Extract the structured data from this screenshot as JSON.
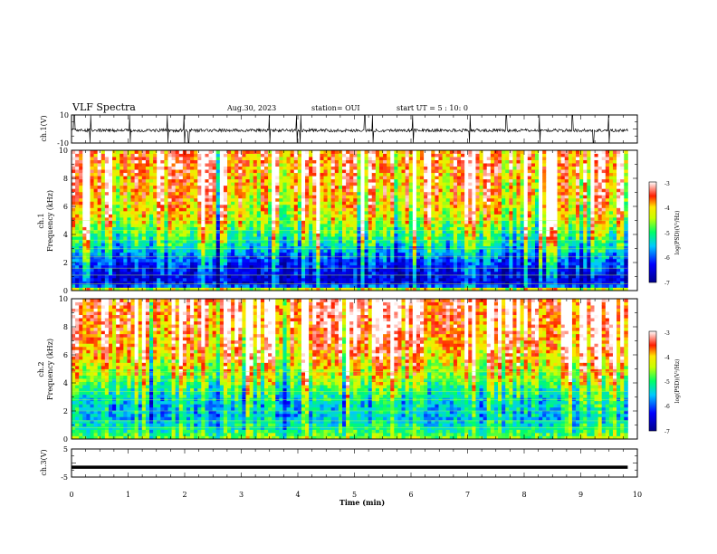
{
  "header": {
    "title": "VLF Spectra",
    "date": "Aug.30, 2023",
    "station": "station= OUI",
    "start": "start  UT  =   5  : 10: 0"
  },
  "chart_data": [
    {
      "type": "line",
      "ylabel": "ch.1(V)",
      "yticks": [
        "10",
        "-10"
      ],
      "ylim": [
        -10,
        10
      ],
      "xlim": [
        0,
        10
      ],
      "color": "#000000",
      "baseline": -1,
      "spike_times": [
        0.05,
        0.33,
        1.03,
        1.7,
        1.99,
        2.07,
        3.5,
        3.98,
        4.05,
        5.18,
        5.32,
        6.03,
        7.04,
        7.68,
        8.27,
        8.85,
        9.22,
        9.5
      ]
    },
    {
      "type": "heatmap",
      "ylabel": "ch.1\nFrequency  (kHz)",
      "ylabel_lines": [
        "ch.1",
        "Frequency  (kHz)"
      ],
      "yticks": [
        "0",
        "2",
        "4",
        "6",
        "8",
        "10"
      ],
      "ylim": [
        0,
        10
      ],
      "xlim": [
        0,
        10
      ],
      "data_xmax": 9.83,
      "colorbar": {
        "label": "log(PSD)(V²/Hz)",
        "ticks": [
          "-3",
          "-4",
          "-5",
          "-6",
          "-7"
        ],
        "range": [
          -7,
          -3
        ]
      },
      "profile": [
        [
          0,
          -3.6
        ],
        [
          0.4,
          -6.4
        ],
        [
          1.0,
          -6.5
        ],
        [
          1.6,
          -6.3
        ],
        [
          2.4,
          -5.9
        ],
        [
          3.2,
          -5.3
        ],
        [
          4.2,
          -4.8
        ],
        [
          5.2,
          -4.2
        ],
        [
          6.5,
          -3.9
        ],
        [
          10,
          -3.5
        ]
      ],
      "lines_khz": [
        0.5,
        1.1,
        1.6,
        2.4,
        3.0,
        3.6,
        4.3,
        5.0
      ]
    },
    {
      "type": "heatmap",
      "ylabel": "ch.2\nFrequency  (kHz)",
      "ylabel_lines": [
        "ch.2",
        "Frequency  (kHz)"
      ],
      "yticks": [
        "0",
        "2",
        "4",
        "6",
        "8",
        "10"
      ],
      "ylim": [
        0,
        10
      ],
      "xlim": [
        0,
        10
      ],
      "data_xmax": 9.83,
      "colorbar": {
        "label": "log(PSD)(V²/Hz)",
        "ticks": [
          "-3",
          "-4",
          "-5",
          "-6",
          "-7"
        ],
        "range": [
          -7,
          -3
        ]
      },
      "profile": [
        [
          0,
          -4.6
        ],
        [
          0.6,
          -5.1
        ],
        [
          1.5,
          -5.5
        ],
        [
          2.5,
          -5.4
        ],
        [
          3.5,
          -5.0
        ],
        [
          4.5,
          -4.4
        ],
        [
          6.0,
          -3.8
        ],
        [
          8.0,
          -3.4
        ],
        [
          10,
          -3.2
        ]
      ],
      "lines_khz": [
        0.8,
        1.3,
        2.0,
        2.8,
        3.4,
        4.2,
        4.8
      ]
    },
    {
      "type": "line",
      "ylabel": "ch.3(V)",
      "yticks": [
        "5",
        "-5"
      ],
      "ylim": [
        -5,
        5
      ],
      "xlim": [
        0,
        10
      ],
      "color": "#000000",
      "baseline": -1.5,
      "xlabel": "Time  (min)",
      "xticks": [
        "0",
        "1",
        "2",
        "3",
        "4",
        "5",
        "6",
        "7",
        "8",
        "9",
        "10"
      ]
    }
  ]
}
